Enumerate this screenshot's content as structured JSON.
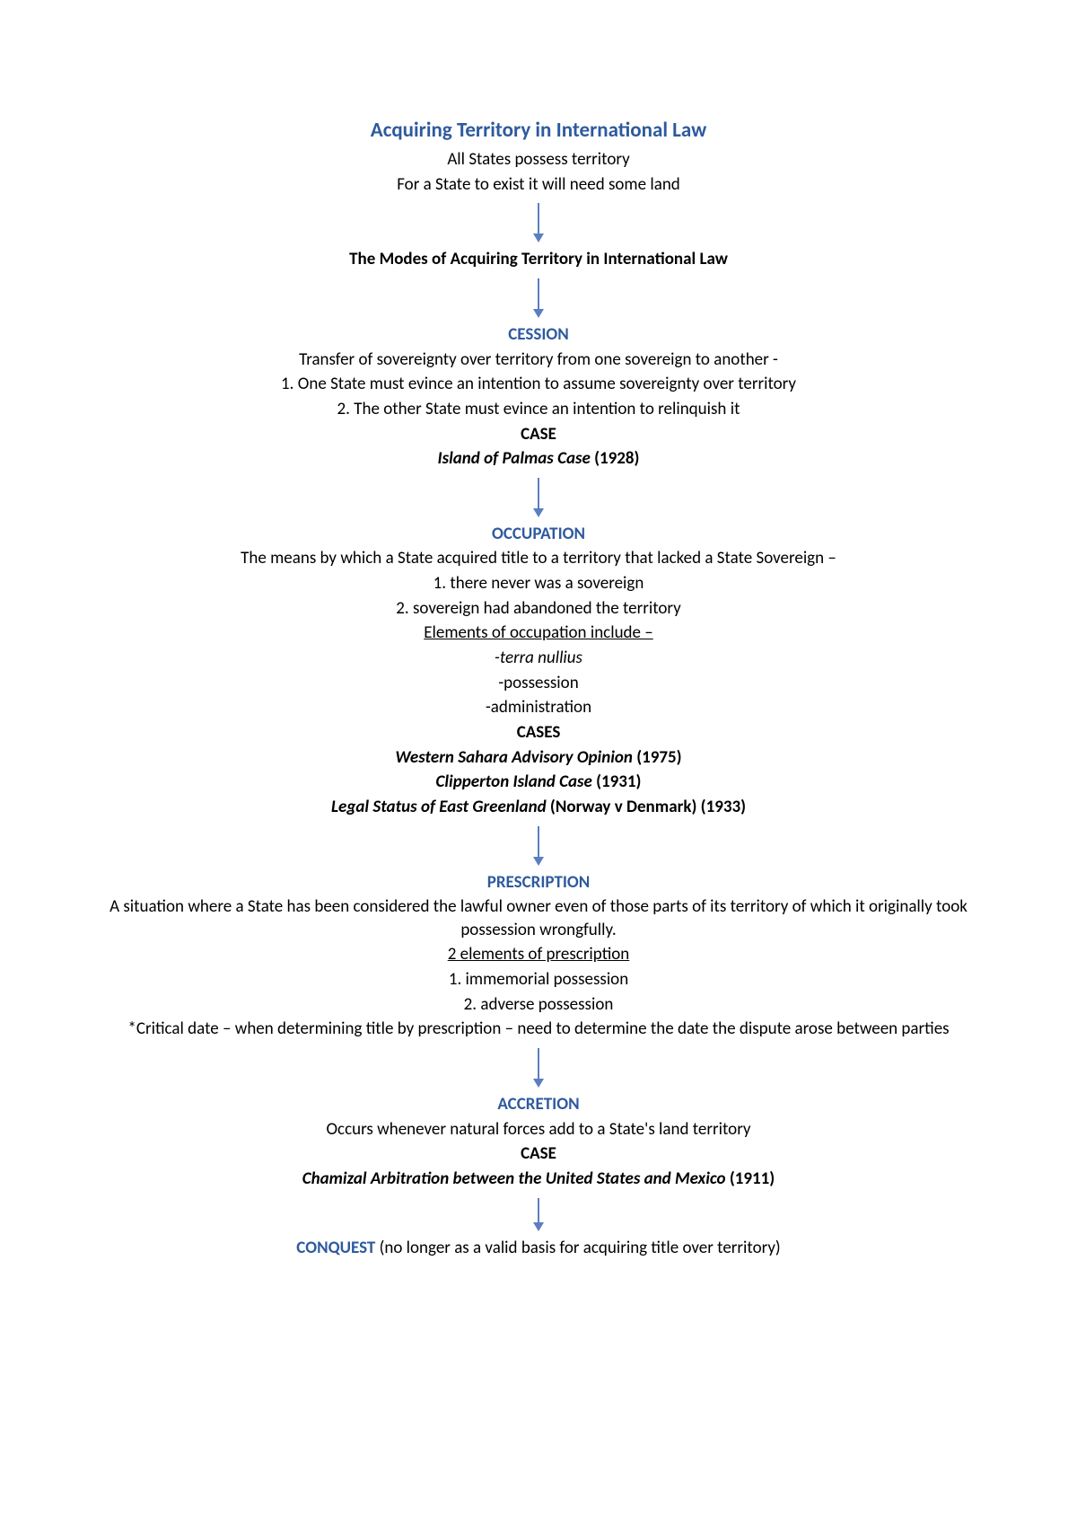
{
  "colors": {
    "heading": "#2e5a9e",
    "text": "#000000",
    "arrow": "#5b7ec2",
    "background": "#ffffff"
  },
  "title": "Acquiring Territory in International Law",
  "intro": {
    "line1": "All States possess territory",
    "line2": "For a State to exist it will need some land"
  },
  "modes_heading": "The Modes of Acquiring Territory in International Law",
  "cession": {
    "heading": "CESSION",
    "desc": "Transfer of sovereignty over territory from one sovereign to another -",
    "item1": "1.   One State must evince an intention to assume sovereignty over territory",
    "item2": "2.   The other State must evince an intention to relinquish it",
    "case_label": "CASE",
    "case_name": "Island of Palmas Case",
    "case_year": " (1928)"
  },
  "occupation": {
    "heading": "OCCUPATION",
    "desc": "The means by which a State acquired title to a territory that lacked a State Sovereign –",
    "item1": "1.   there never was a sovereign",
    "item2": "2.   sovereign had abandoned the territory",
    "elements_heading": "Elements of occupation include –",
    "el1": "-terra nullius",
    "el2": "-possession",
    "el3": "-administration",
    "cases_label": "CASES",
    "case1_name": "Western Sahara Advisory Opinion",
    "case1_year": " (1975)",
    "case2_name": "Clipperton Island Case",
    "case2_year": " (1931)",
    "case3_name": "Legal Status of East Greenland",
    "case3_year": " (Norway v Denmark) (1933)"
  },
  "prescription": {
    "heading": "PRESCRIPTION",
    "desc": "A situation where a State has been considered the lawful owner even of those parts of its territory of which it originally took possession wrongfully.",
    "elements_heading": "2 elements of prescription",
    "item1": "1.   immemorial possession",
    "item2": "2.   adverse possession",
    "note": "*Critical date – when determining title by prescription – need to determine the date the dispute arose between parties"
  },
  "accretion": {
    "heading": "ACCRETION",
    "desc": "Occurs whenever natural forces add to a State's land territory",
    "case_label": "CASE",
    "case_name": "Chamizal Arbitration between the United States and Mexico",
    "case_year": " (1911)"
  },
  "conquest": {
    "heading": "CONQUEST",
    "note": " (no longer as a valid basis for acquiring title over territory)"
  }
}
